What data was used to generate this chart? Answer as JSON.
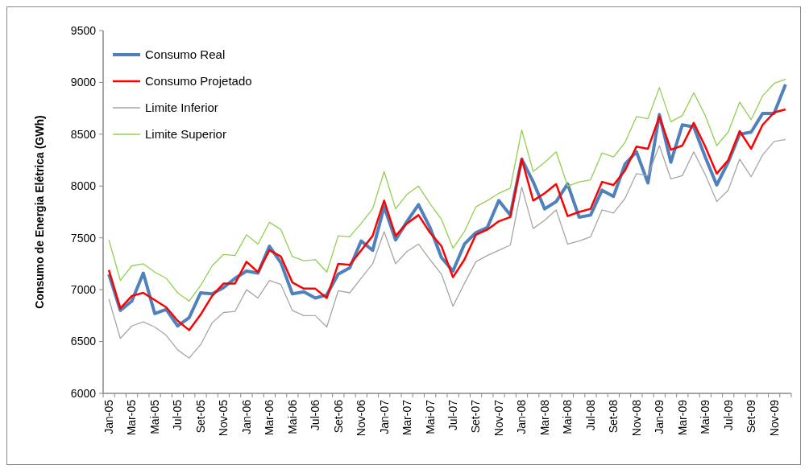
{
  "chart_data": {
    "type": "line",
    "ylabel": "Consumo de Energia Elétrica (GWh)",
    "categories": [
      "Jan-05",
      null,
      "Mar-05",
      null,
      "Mai-05",
      null,
      "Jul-05",
      null,
      "Set-05",
      null,
      "Nov-05",
      null,
      "Jan-06",
      null,
      "Mar-06",
      null,
      "Mai-06",
      null,
      "Jul-06",
      null,
      "Set-06",
      null,
      "Nov-06",
      null,
      "Jan-07",
      null,
      "Mar-07",
      null,
      "Mai-07",
      null,
      "Jul-07",
      null,
      "Set-07",
      null,
      "Nov-07",
      null,
      "Jan-08",
      null,
      "Mar-08",
      null,
      "Mai-08",
      null,
      "Jul-08",
      null,
      "Set-08",
      null,
      "Nov-08",
      null,
      "Jan-09",
      null,
      "Mar-09",
      null,
      "Mai-09",
      null,
      "Jul-09",
      null,
      "Set-09",
      null,
      "Nov-09",
      null
    ],
    "series": [
      {
        "name": "Consumo Real",
        "color": "#4f81bd",
        "values": [
          7150,
          6800,
          6890,
          7160,
          6770,
          6810,
          6650,
          6730,
          6970,
          6960,
          7020,
          7110,
          7180,
          7160,
          7420,
          7260,
          6960,
          6980,
          6920,
          6950,
          7150,
          7210,
          7470,
          7380,
          7800,
          7480,
          7660,
          7820,
          7600,
          7310,
          7180,
          7440,
          7550,
          7600,
          7860,
          7720,
          8260,
          8040,
          7780,
          7850,
          8020,
          7700,
          7720,
          7960,
          7900,
          8210,
          8330,
          8030,
          8690,
          8230,
          8590,
          8570,
          8280,
          8010,
          8230,
          8500,
          8520,
          8700,
          8700,
          8980
        ]
      },
      {
        "name": "Consumo Projetado",
        "color": "#ff0000",
        "values": [
          7190,
          6820,
          6940,
          6970,
          6900,
          6830,
          6700,
          6610,
          6760,
          6940,
          7060,
          7060,
          7270,
          7170,
          7380,
          7320,
          7070,
          7010,
          7010,
          6920,
          7250,
          7240,
          7380,
          7520,
          7860,
          7520,
          7640,
          7720,
          7550,
          7420,
          7120,
          7290,
          7530,
          7580,
          7660,
          7700,
          8260,
          7860,
          7930,
          8020,
          7710,
          7750,
          7780,
          8040,
          8010,
          8150,
          8380,
          8360,
          8670,
          8350,
          8390,
          8610,
          8380,
          8120,
          8250,
          8530,
          8360,
          8590,
          8710,
          8740
        ]
      },
      {
        "name": "Limite Inferior",
        "color": "#a6a6a6",
        "values": [
          6910,
          6530,
          6650,
          6690,
          6640,
          6560,
          6420,
          6340,
          6470,
          6680,
          6780,
          6790,
          7000,
          6920,
          7090,
          7050,
          6800,
          6750,
          6750,
          6640,
          6990,
          6970,
          7110,
          7250,
          7560,
          7250,
          7370,
          7440,
          7290,
          7150,
          6840,
          7060,
          7270,
          7330,
          7380,
          7430,
          7990,
          7590,
          7670,
          7770,
          7440,
          7470,
          7510,
          7770,
          7740,
          7880,
          8120,
          8100,
          8390,
          8070,
          8100,
          8330,
          8110,
          7850,
          7960,
          8260,
          8090,
          8300,
          8430,
          8450
        ]
      },
      {
        "name": "Limite Superior",
        "color": "#92d050",
        "values": [
          7480,
          7090,
          7230,
          7250,
          7170,
          7110,
          6970,
          6890,
          7040,
          7230,
          7340,
          7330,
          7530,
          7440,
          7650,
          7580,
          7320,
          7280,
          7290,
          7170,
          7520,
          7510,
          7640,
          7780,
          8140,
          7780,
          7920,
          8000,
          7830,
          7680,
          7400,
          7560,
          7800,
          7860,
          7930,
          7980,
          8540,
          8140,
          8230,
          8330,
          8000,
          8040,
          8060,
          8320,
          8280,
          8420,
          8670,
          8650,
          8950,
          8620,
          8680,
          8900,
          8680,
          8390,
          8520,
          8810,
          8640,
          8870,
          8990,
          9030
        ]
      }
    ],
    "ylim": [
      6000,
      9500
    ],
    "yticks": [
      6000,
      6500,
      7000,
      7500,
      8000,
      8500,
      9000,
      9500
    ],
    "grid": false,
    "legend": "top left",
    "marker": "none"
  }
}
